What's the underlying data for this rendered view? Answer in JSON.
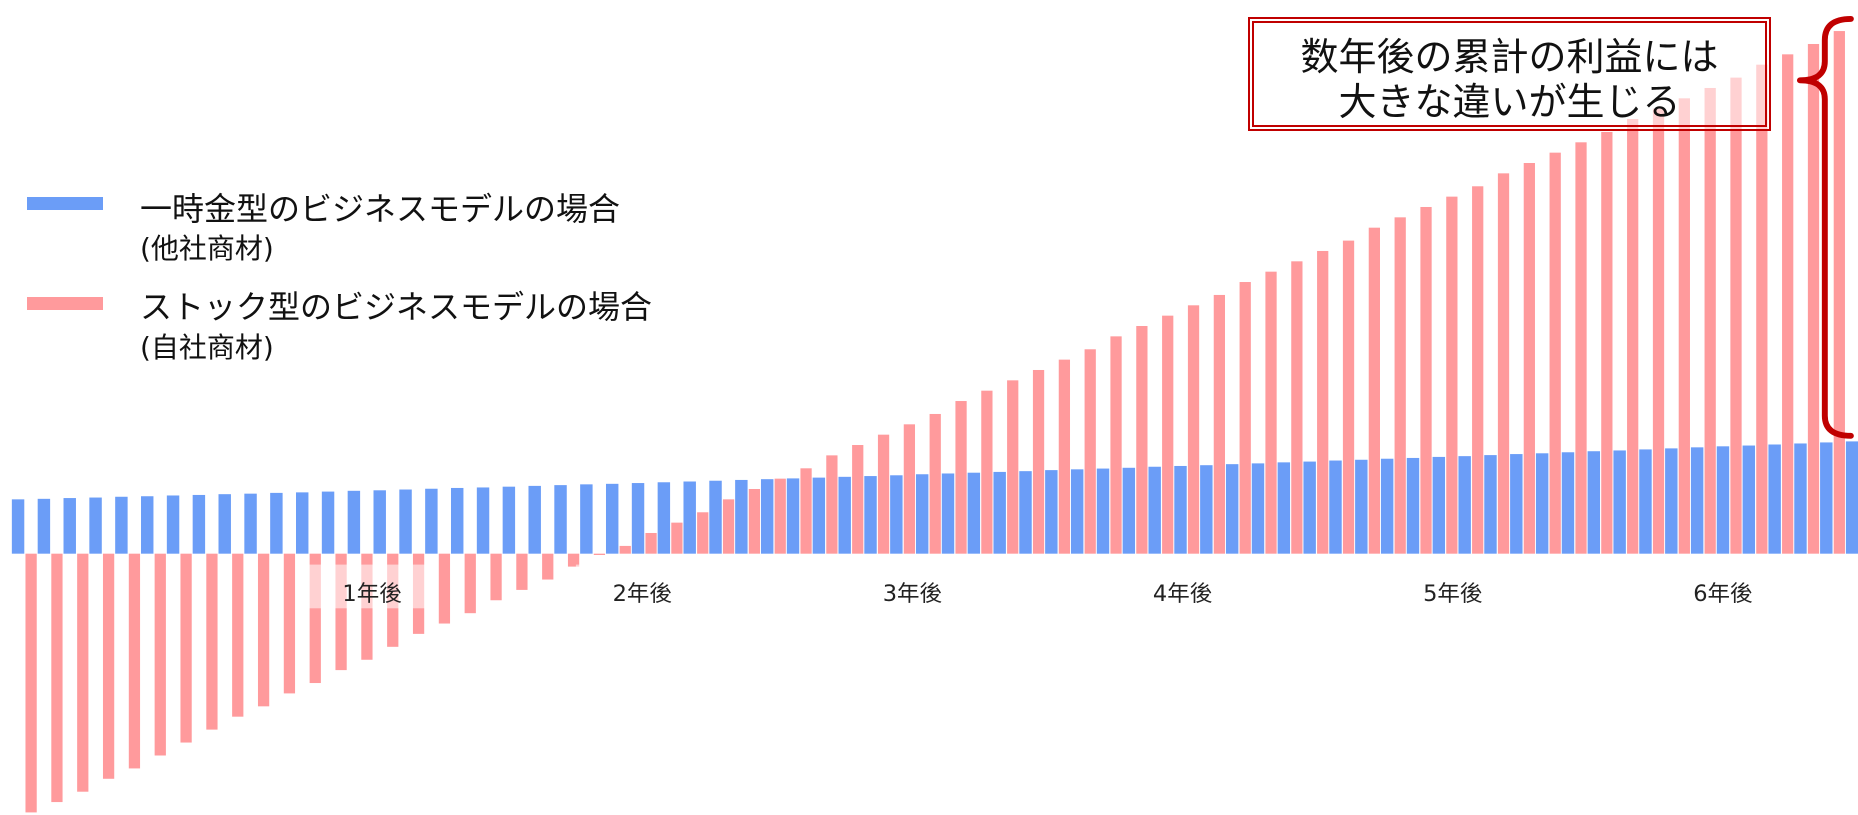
{
  "chart_data": {
    "type": "bar",
    "legend_position": "left",
    "grid": false,
    "ylim": [
      -101,
      214
    ],
    "x_tick_labels": [
      "1年後",
      "2年後",
      "3年後",
      "4年後",
      "5年後",
      "6年後"
    ],
    "series": [
      {
        "name": "一時金型のビジネスモデルの場合",
        "note": "(他社商材)",
        "color": "#6B9DF7",
        "values": [
          21.0,
          21.2,
          21.5,
          21.7,
          22.0,
          22.2,
          22.5,
          22.7,
          23.0,
          23.2,
          23.5,
          23.7,
          24.0,
          24.3,
          24.5,
          24.8,
          25.1,
          25.4,
          25.6,
          25.9,
          26.2,
          26.5,
          26.8,
          27.0,
          27.3,
          27.6,
          27.9,
          28.2,
          28.5,
          28.8,
          29.1,
          29.4,
          29.7,
          30.0,
          30.3,
          30.7,
          31.0,
          31.3,
          31.6,
          31.9,
          32.3,
          32.6,
          32.9,
          33.2,
          33.6,
          33.9,
          34.2,
          34.6,
          34.9,
          35.3,
          35.6,
          36.0,
          36.3,
          36.7,
          37.0,
          37.4,
          37.7,
          38.1,
          38.5,
          38.8,
          39.2,
          39.6,
          39.9,
          40.3,
          40.7,
          41.1,
          41.5,
          41.8,
          42.2,
          42.6,
          43.0,
          43.4
        ]
      },
      {
        "name": "ストック型のビジネスモデルの場合",
        "note": "(自社商材)",
        "color": "#FF9A9C",
        "values": [
          -100,
          -96,
          -92,
          -87,
          -83,
          -78,
          -73,
          -68,
          -63,
          -59,
          -54,
          -50,
          -45,
          -41,
          -36,
          -31,
          -27,
          -23,
          -18,
          -14,
          -10,
          -5,
          -0.5,
          3,
          8,
          12,
          16,
          21,
          25,
          29,
          33,
          38,
          42,
          46,
          50,
          54,
          59,
          63,
          67,
          71,
          75,
          79,
          84,
          88,
          92,
          96,
          100,
          105,
          109,
          113,
          117,
          121,
          126,
          130,
          134,
          138,
          142,
          147,
          151,
          155,
          159,
          163,
          168,
          172,
          176,
          180,
          184,
          189,
          193,
          197,
          202,
          null
        ]
      }
    ],
    "annotation": {
      "lines": [
        "数年後の累計の利益には",
        "大きな違いが生じる"
      ],
      "border_color": "#C00000",
      "brace_color": "#C00000"
    }
  }
}
